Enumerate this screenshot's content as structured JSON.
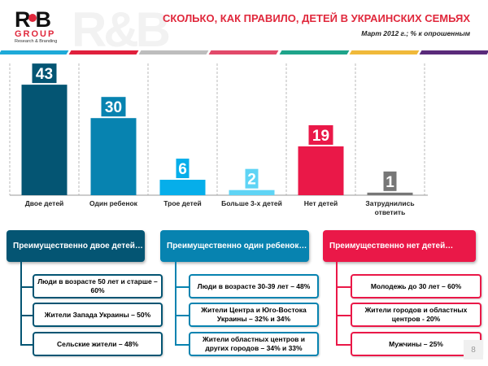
{
  "logo": {
    "name": "R&B",
    "group": "GROUP",
    "tagline": "Research & Branding"
  },
  "header": {
    "title": "СКОЛЬКО, КАК ПРАВИЛО, ДЕТЕЙ В УКРАИНСКИХ СЕМЬЯХ",
    "subtitle": "Март 2012 г.; % к опрошенным"
  },
  "stripe_colors": [
    "#1eaad8",
    "#e0203c",
    "#bdbdbd",
    "#e24a6a",
    "#1ea48a",
    "#f0b93a",
    "#5a2a7a"
  ],
  "chart_data": {
    "type": "bar",
    "title": "СКОЛЬКО, КАК ПРАВИЛО, ДЕТЕЙ В УКРАИНСКИХ СЕМЬЯХ",
    "xlabel": "",
    "ylabel": "",
    "ylim": [
      0,
      45
    ],
    "categories": [
      "Двое детей",
      "Один ребенок",
      "Трое детей",
      "Больше 3-х детей",
      "Нет детей",
      "Затруднились ответить"
    ],
    "values": [
      43,
      30,
      6,
      2,
      19,
      1
    ],
    "colors": [
      "#045573",
      "#0783b0",
      "#06aeea",
      "#5fd4f5",
      "#ea1848",
      "#777777"
    ]
  },
  "groups": [
    {
      "title": "Преимущественно двое детей…",
      "color": "#045573",
      "items": [
        "Люди в возрасте 50 лет и старше – 60%",
        "Жители Запада Украины – 50%",
        "Сельские жители – 48%"
      ]
    },
    {
      "title": "Преимущественно один ребенок…",
      "color": "#0783b0",
      "items": [
        "Люди в возрасте 30-39 лет – 48%",
        "Жители Центра и Юго-Востока Украины – 32% и 34%",
        "Жители областных центров и других городов – 34% и 33%"
      ]
    },
    {
      "title": "Преимущественно нет детей…",
      "color": "#ea1848",
      "items": [
        "Молодежь до 30 лет – 60%",
        "Жители городов и областных центров  - 20%",
        "Мужчины – 25%"
      ]
    }
  ],
  "page_number": "8"
}
